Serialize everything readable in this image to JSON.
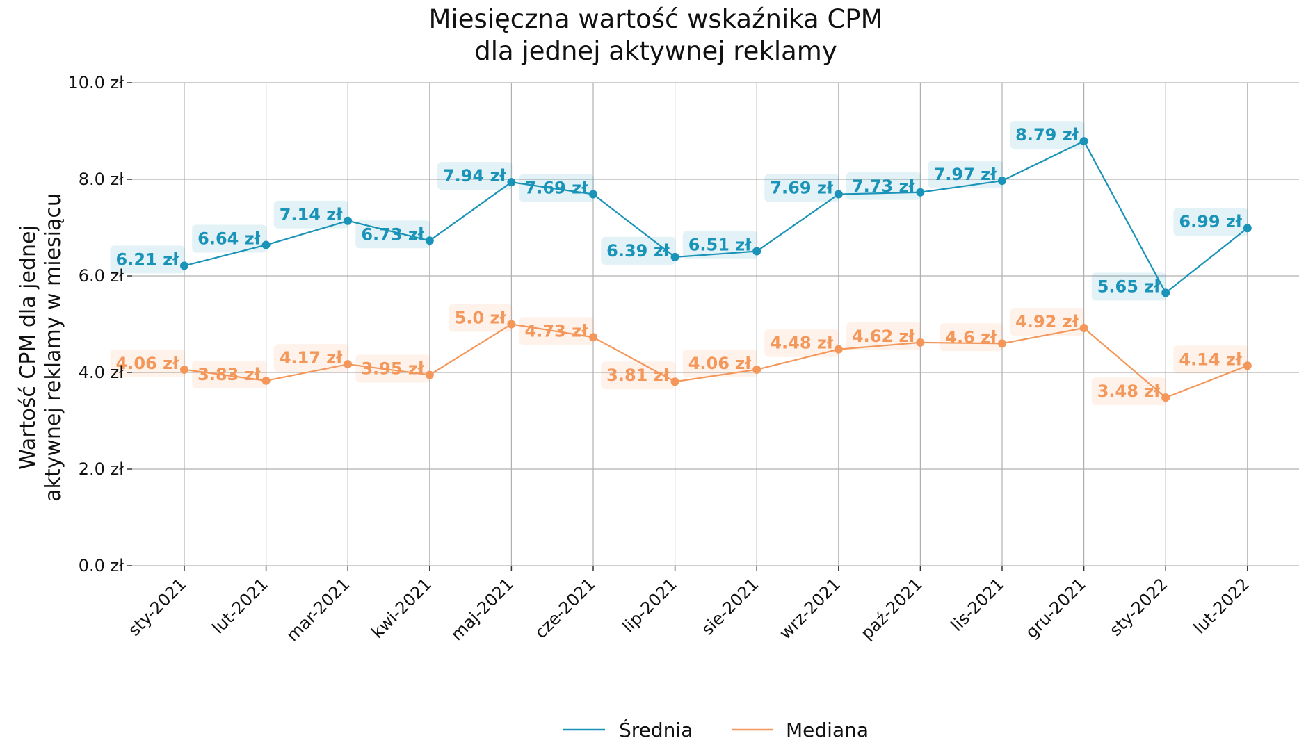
{
  "chart_data": {
    "type": "line",
    "title": [
      "Miesięczna wartość wskaźnika CPM",
      "dla jednej aktywnej reklamy"
    ],
    "ylabel": [
      "Wartość CPM dla jednej",
      "aktywnej reklamy w miesiącu"
    ],
    "xlabel": "",
    "categories": [
      "sty-2021",
      "lut-2021",
      "mar-2021",
      "kwi-2021",
      "maj-2021",
      "cze-2021",
      "lip-2021",
      "sie-2021",
      "wrz-2021",
      "paź-2021",
      "lis-2021",
      "gru-2021",
      "sty-2022",
      "lut-2022"
    ],
    "ylim": [
      0,
      10
    ],
    "yticks": [
      0,
      2,
      4,
      6,
      8,
      10
    ],
    "ytick_labels": [
      "0.0 zł",
      "2.0 zł",
      "4.0 zł",
      "6.0 zł",
      "8.0 zł",
      "10.0 zł"
    ],
    "grid": true,
    "legend_position": "bottom-center",
    "series": [
      {
        "name": "Średnia",
        "color": "#1a93b8",
        "values": [
          6.21,
          6.64,
          7.14,
          6.73,
          7.94,
          7.69,
          6.39,
          6.51,
          7.69,
          7.73,
          7.97,
          8.79,
          5.65,
          6.99
        ],
        "labels": [
          "6.21 zł",
          "6.64 zł",
          "7.14 zł",
          "6.73 zł",
          "7.94 zł",
          "7.69 zł",
          "6.39 zł",
          "6.51 zł",
          "7.69 zł",
          "7.73 zł",
          "7.97 zł",
          "8.79 zł",
          "5.65 zł",
          "6.99 zł"
        ]
      },
      {
        "name": "Mediana",
        "color": "#f4975a",
        "values": [
          4.06,
          3.83,
          4.17,
          3.95,
          5.0,
          4.73,
          3.81,
          4.06,
          4.48,
          4.62,
          4.6,
          4.92,
          3.48,
          4.14
        ],
        "labels": [
          "4.06 zł",
          "3.83 zł",
          "4.17 zł",
          "3.95 zł",
          "5.0 zł",
          "4.73 zł",
          "3.81 zł",
          "4.06 zł",
          "4.48 zł",
          "4.62 zł",
          "4.6 zł",
          "4.92 zł",
          "3.48 zł",
          "4.14 zł"
        ]
      }
    ]
  }
}
